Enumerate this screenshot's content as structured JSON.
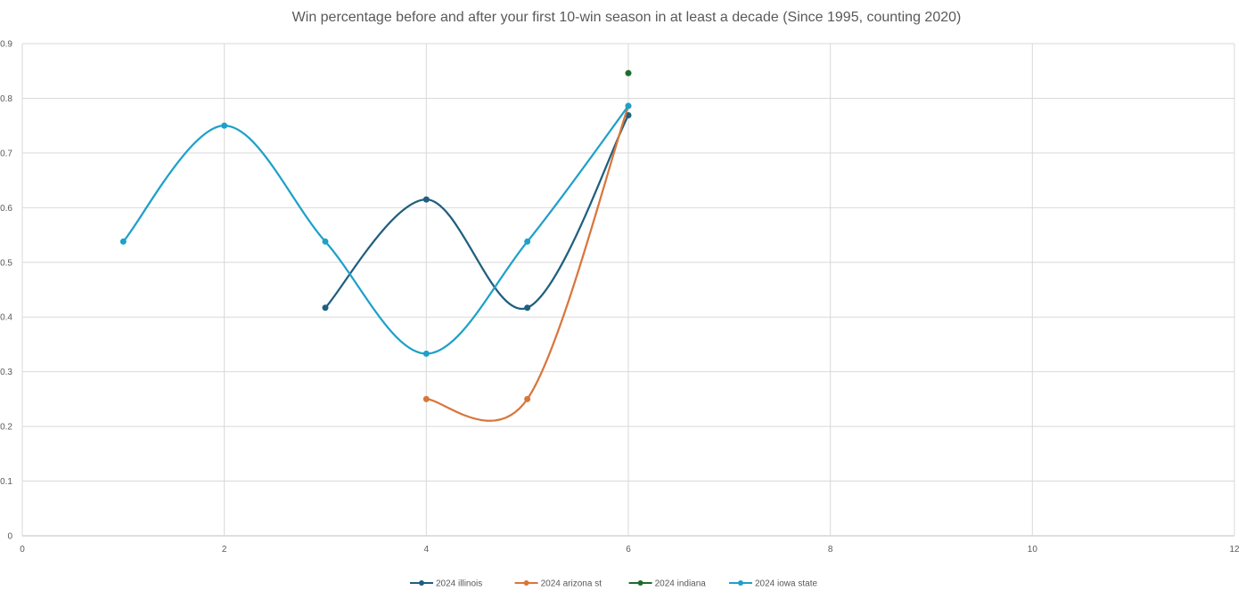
{
  "chart_data": {
    "type": "scatter",
    "title": "Win percentage before and after your first 10-win season in at least a decade (Since 1995, counting 2020)",
    "xlabel": "",
    "ylabel": "",
    "xlim": [
      0,
      12
    ],
    "ylim": [
      0,
      0.9
    ],
    "x_ticks": [
      0,
      2,
      4,
      6,
      8,
      10,
      12
    ],
    "y_ticks": [
      0,
      0.1,
      0.2,
      0.3,
      0.4,
      0.5,
      0.6,
      0.7,
      0.8,
      0.9
    ],
    "x_tick_labels": [
      "0",
      "2",
      "4",
      "6",
      "8",
      "10",
      "12"
    ],
    "y_tick_labels": [
      "0",
      "0.1",
      "0.2",
      "0.3",
      "0.4",
      "0.5",
      "0.6",
      "0.7",
      "0.8",
      "0.9"
    ],
    "grid": true,
    "lines": "smoothed",
    "legend_position": "bottom",
    "series": [
      {
        "name": "2024 illinois",
        "color": "#1f5f7f",
        "points": [
          [
            3,
            0.417
          ],
          [
            4,
            0.615
          ],
          [
            5,
            0.417
          ],
          [
            6,
            0.769
          ]
        ]
      },
      {
        "name": "2024 arizona st",
        "color": "#d9763b",
        "points": [
          [
            4,
            0.25
          ],
          [
            5,
            0.25
          ],
          [
            6,
            0.786
          ]
        ]
      },
      {
        "name": "2024 indiana",
        "color": "#1e6b2c",
        "points": [
          [
            6,
            0.846
          ]
        ]
      },
      {
        "name": "2024 iowa state",
        "color": "#1fa0c9",
        "points": [
          [
            1,
            0.538
          ],
          [
            2,
            0.75
          ],
          [
            3,
            0.538
          ],
          [
            4,
            0.333
          ],
          [
            5,
            0.538
          ],
          [
            6,
            0.786
          ]
        ]
      }
    ]
  }
}
